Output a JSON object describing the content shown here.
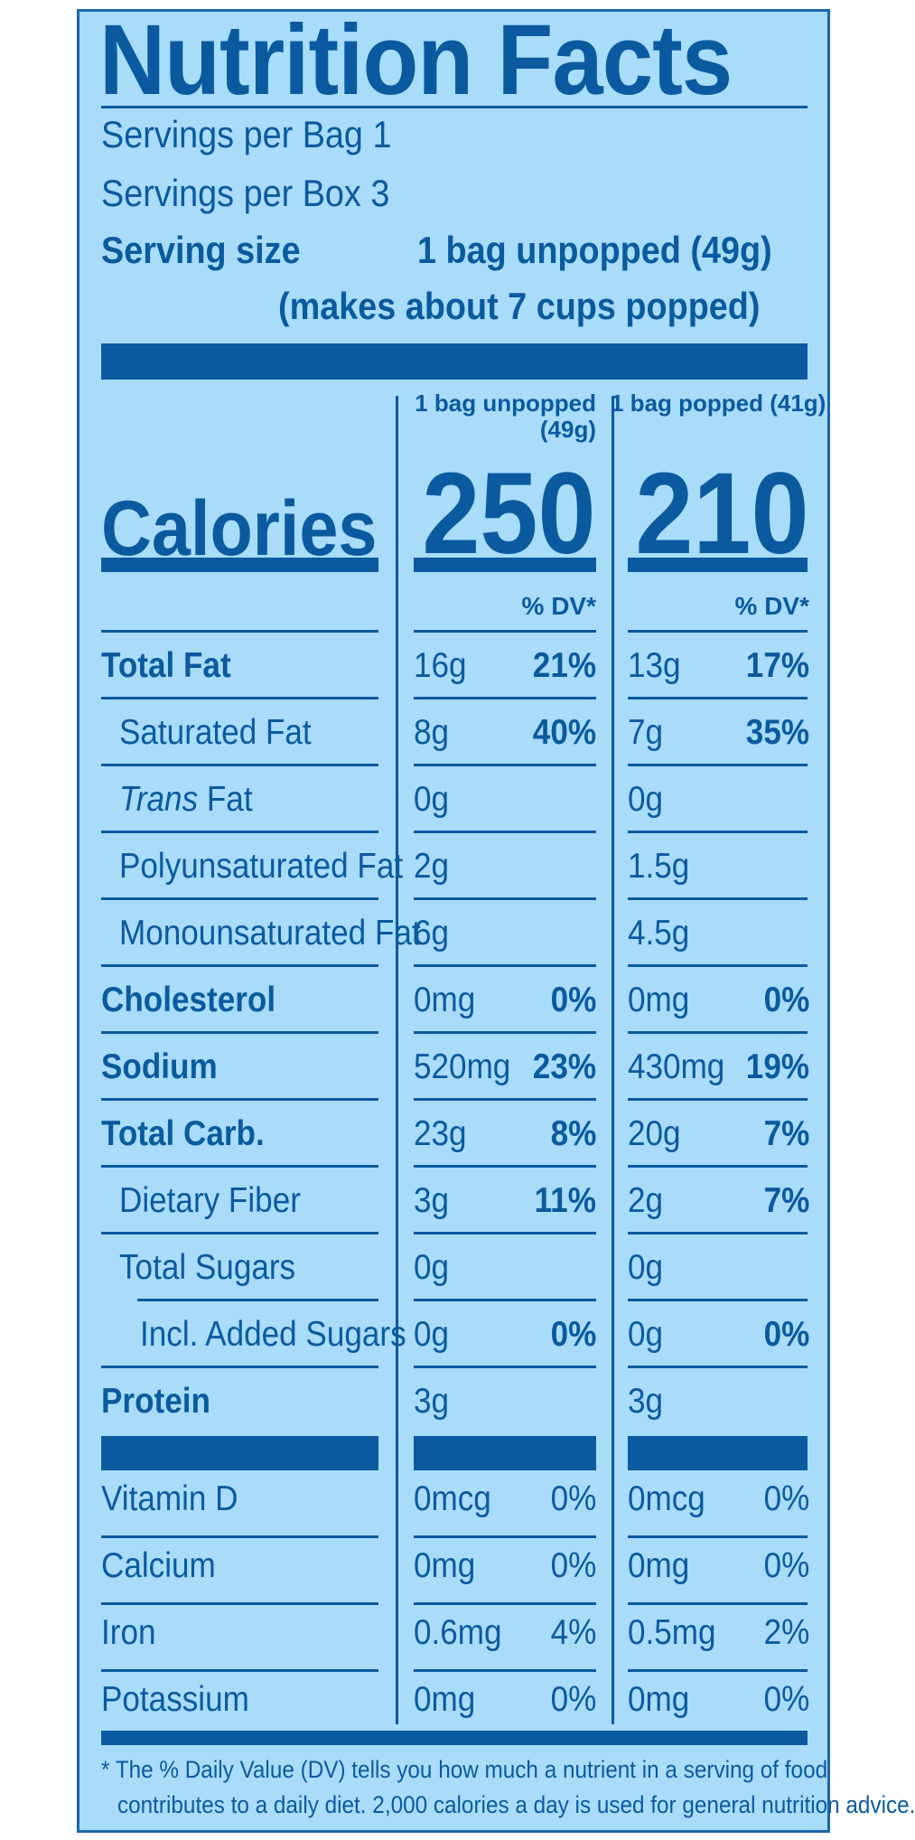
{
  "title": "Nutrition Facts",
  "servings_per_bag": "Servings per Bag 1",
  "servings_per_box": "Servings per Box 3",
  "serving_size_label": "Serving size",
  "serving_size_value": "1 bag unpopped (49g)",
  "serving_size_note": "(makes about 7 cups popped)",
  "columns": {
    "unpopped_header_line1": "1 bag unpopped",
    "unpopped_header_line2": "(49g)",
    "popped_header": "1 bag popped (41g)"
  },
  "calories_label": "Calories",
  "calories_unpopped": "250",
  "calories_popped": "210",
  "dv_header": "% DV*",
  "nutrients": [
    {
      "name": "Total Fat",
      "bold": true,
      "indent": 0,
      "u_amt": "16g",
      "u_dv": "21%",
      "p_amt": "13g",
      "p_dv": "17%"
    },
    {
      "name": "Saturated Fat",
      "bold": false,
      "indent": 1,
      "u_amt": "8g",
      "u_dv": "40%",
      "p_amt": "7g",
      "p_dv": "35%"
    },
    {
      "name_italic": "Trans",
      "name": " Fat",
      "bold": false,
      "indent": 1,
      "u_amt": "0g",
      "u_dv": "",
      "p_amt": "0g",
      "p_dv": ""
    },
    {
      "name": "Polyunsaturated Fat",
      "bold": false,
      "indent": 1,
      "u_amt": "2g",
      "u_dv": "",
      "p_amt": "1.5g",
      "p_dv": ""
    },
    {
      "name": "Monounsaturated Fat",
      "bold": false,
      "indent": 1,
      "u_amt": "6g",
      "u_dv": "",
      "p_amt": "4.5g",
      "p_dv": ""
    },
    {
      "name": "Cholesterol",
      "bold": true,
      "indent": 0,
      "u_amt": "0mg",
      "u_dv": "0%",
      "p_amt": "0mg",
      "p_dv": "0%"
    },
    {
      "name": "Sodium",
      "bold": true,
      "indent": 0,
      "u_amt": "520mg",
      "u_dv": "23%",
      "p_amt": "430mg",
      "p_dv": "19%"
    },
    {
      "name": "Total Carb.",
      "bold": true,
      "indent": 0,
      "u_amt": "23g",
      "u_dv": "8%",
      "p_amt": "20g",
      "p_dv": "7%"
    },
    {
      "name": "Dietary Fiber",
      "bold": false,
      "indent": 1,
      "u_amt": "3g",
      "u_dv": "11%",
      "p_amt": "2g",
      "p_dv": "7%"
    },
    {
      "name": "Total Sugars",
      "bold": false,
      "indent": 1,
      "u_amt": "0g",
      "u_dv": "",
      "p_amt": "0g",
      "p_dv": ""
    },
    {
      "name": "Incl. Added Sugars",
      "bold": false,
      "indent": 2,
      "u_amt": "0g",
      "u_dv": "0%",
      "p_amt": "0g",
      "p_dv": "0%"
    },
    {
      "name": "Protein",
      "bold": true,
      "indent": 0,
      "u_amt": "3g",
      "u_dv": "",
      "p_amt": "3g",
      "p_dv": ""
    }
  ],
  "vitamins": [
    {
      "name": "Vitamin D",
      "u_amt": "0mcg",
      "u_dv": "0%",
      "p_amt": "0mcg",
      "p_dv": "0%"
    },
    {
      "name": "Calcium",
      "u_amt": "0mg",
      "u_dv": "0%",
      "p_amt": "0mg",
      "p_dv": "0%"
    },
    {
      "name": "Iron",
      "u_amt": "0.6mg",
      "u_dv": "4%",
      "p_amt": "0.5mg",
      "p_dv": "2%"
    },
    {
      "name": "Potassium",
      "u_amt": "0mg",
      "u_dv": "0%",
      "p_amt": "0mg",
      "p_dv": "0%"
    }
  ],
  "footnote_line1": "* The % Daily Value (DV) tells you how much a nutrient in a serving of food",
  "footnote_line2": "contributes to a daily diet. 2,000 calories a day is used for general nutrition advice.",
  "colors": {
    "background": "#a9dcf9",
    "ink": "#0a5aa0"
  }
}
